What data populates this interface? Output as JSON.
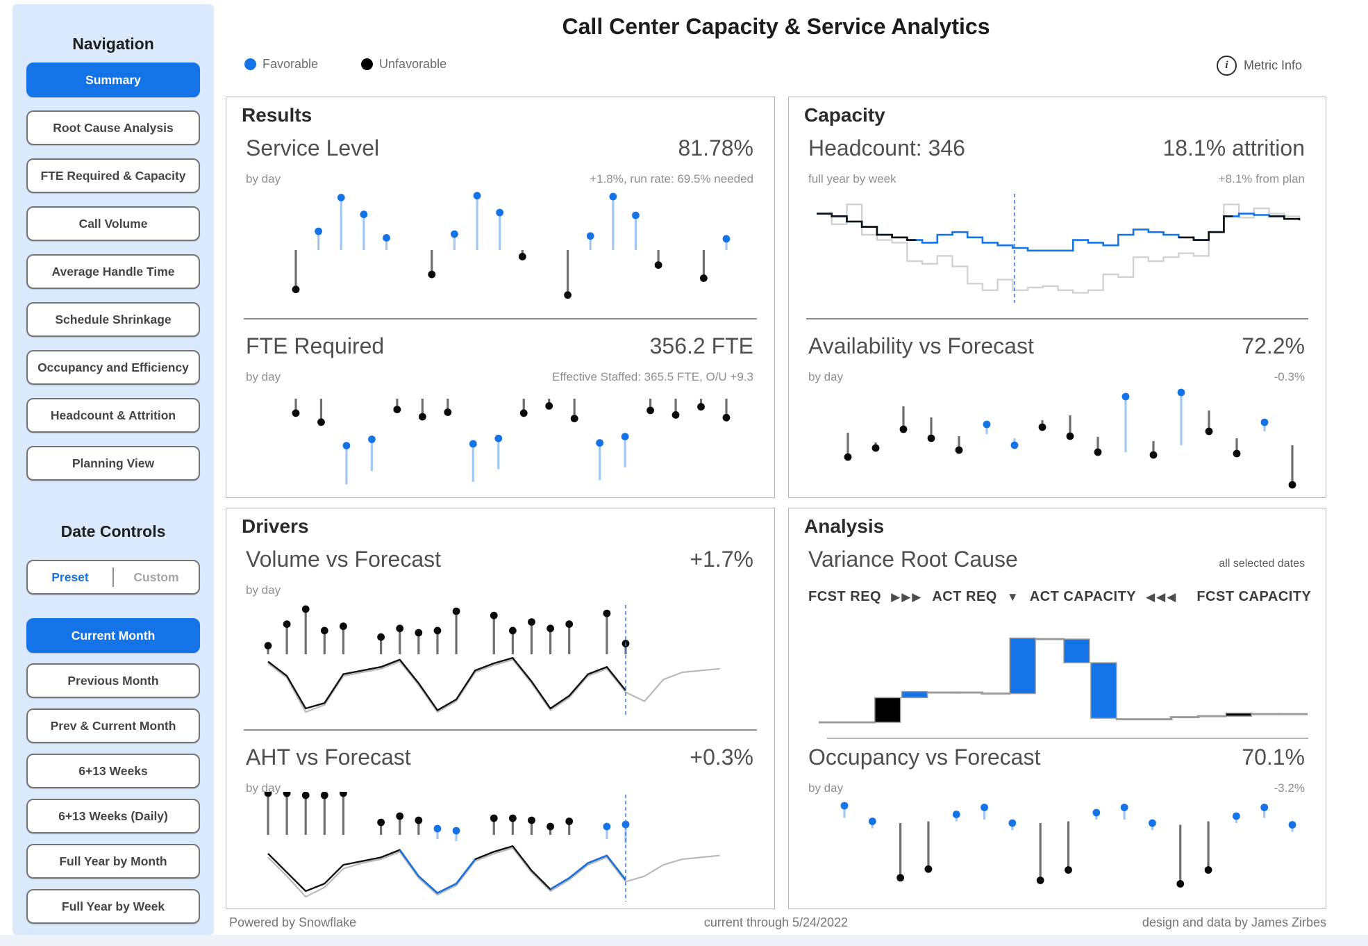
{
  "header": {
    "title": "Call Center Capacity & Service Analytics",
    "legend": [
      {
        "label": "Favorable",
        "color": "#1473e6"
      },
      {
        "label": "Unfavorable",
        "color": "#000000"
      }
    ],
    "metric_info_label": "Metric Info"
  },
  "sidebar": {
    "nav_title": "Navigation",
    "nav_items": [
      {
        "label": "Summary",
        "active": true
      },
      {
        "label": "Root Cause Analysis",
        "active": false
      },
      {
        "label": "FTE Required & Capacity",
        "active": false
      },
      {
        "label": "Call Volume",
        "active": false
      },
      {
        "label": "Average Handle Time",
        "active": false
      },
      {
        "label": "Schedule Shrinkage",
        "active": false
      },
      {
        "label": "Occupancy and Efficiency",
        "active": false
      },
      {
        "label": "Headcount & Attrition",
        "active": false
      },
      {
        "label": "Planning View",
        "active": false
      }
    ],
    "date_title": "Date Controls",
    "segmented": {
      "preset": "Preset",
      "custom": "Custom"
    },
    "date_items": [
      {
        "label": "Current Month",
        "active": true
      },
      {
        "label": "Previous Month",
        "active": false
      },
      {
        "label": "Prev & Current Month",
        "active": false
      },
      {
        "label": "6+13 Weeks",
        "active": false
      },
      {
        "label": "6+13 Weeks (Daily)",
        "active": false
      },
      {
        "label": "Full Year by Month",
        "active": false
      },
      {
        "label": "Full Year by Week",
        "active": false
      }
    ]
  },
  "panels": {
    "results": {
      "title": "Results",
      "metrics": [
        {
          "name": "Service Level",
          "sub": "by day",
          "value": "81.78%",
          "note": "+1.8%, run rate: 69.5% needed"
        },
        {
          "name": "FTE Required",
          "sub": "by day",
          "value": "356.2 FTE",
          "note": "Effective Staffed: 365.5 FTE, O/U +9.3"
        }
      ]
    },
    "capacity": {
      "title": "Capacity",
      "metrics": [
        {
          "name": "Headcount: 346",
          "sub": "full year by week",
          "value": "18.1% attrition",
          "note": "+8.1% from plan"
        },
        {
          "name": "Availability vs Forecast",
          "sub": "by day",
          "value": "72.2%",
          "note": "-0.3%"
        }
      ]
    },
    "drivers": {
      "title": "Drivers",
      "metrics": [
        {
          "name": "Volume vs Forecast",
          "sub": "by day",
          "value": "+1.7%",
          "note": ""
        },
        {
          "name": "AHT vs Forecast",
          "sub": "by day",
          "value": "+0.3%",
          "note": ""
        }
      ]
    },
    "analysis": {
      "title": "Analysis",
      "metrics": [
        {
          "name": "Variance Root Cause",
          "note_right": "all selected dates"
        },
        {
          "name": "Occupancy vs Forecast",
          "sub": "by day",
          "value": "70.1%",
          "note": "-3.2%"
        }
      ],
      "flow": [
        "FCST REQ",
        "▶▶▶",
        "ACT REQ",
        "▼",
        "ACT CAPACITY",
        "◀◀◀",
        "FCST CAPACITY"
      ]
    }
  },
  "footer": {
    "left": "Powered by Snowflake",
    "center": "current through 5/24/2022",
    "right": "design and data by James Zirbes"
  },
  "colors": {
    "blue": "#1473e6",
    "black": "#0a0a0a",
    "stem_blue": "#a3c7f3",
    "stem_gray": "#6f6f6f",
    "plan_gray": "#d2d2d2",
    "forecast_gray": "#b9b9b9",
    "conn_gray": "#9b9b9b",
    "cursor_blue": "#3f7de0"
  },
  "chart_data": {
    "service_level": {
      "type": "lollipop",
      "title": "Service Level by day, % vs goal (blue favorable above baseline, black unfavorable below)",
      "points": [
        {
          "c": "k",
          "v": -42
        },
        {
          "c": "b",
          "v": 20
        },
        {
          "c": "b",
          "v": 56
        },
        {
          "c": "b",
          "v": 38
        },
        {
          "c": "b",
          "v": 13
        },
        null,
        {
          "c": "k",
          "v": -26
        },
        {
          "c": "b",
          "v": 17
        },
        {
          "c": "b",
          "v": 58
        },
        {
          "c": "b",
          "v": 40
        },
        {
          "c": "k",
          "v": -7
        },
        null,
        {
          "c": "k",
          "v": -48
        },
        {
          "c": "b",
          "v": 15
        },
        {
          "c": "b",
          "v": 57
        },
        {
          "c": "b",
          "v": 37
        },
        {
          "c": "k",
          "v": -16
        },
        null,
        {
          "c": "k",
          "v": -30
        },
        {
          "c": "b",
          "v": 12
        }
      ]
    },
    "fte_required": {
      "type": "lollipop",
      "title": "FTE Required by day vs effective staffed",
      "points": [
        {
          "c": "k",
          "v": -16
        },
        {
          "c": "k",
          "v": -26
        },
        {
          "c": "b",
          "v": -52,
          "t": -95
        },
        {
          "c": "b",
          "v": -45,
          "t": -80
        },
        {
          "c": "k",
          "v": -12
        },
        {
          "c": "k",
          "v": -20
        },
        {
          "c": "k",
          "v": -15
        },
        {
          "c": "b",
          "v": -50,
          "t": -92
        },
        {
          "c": "b",
          "v": -44,
          "t": -78
        },
        {
          "c": "k",
          "v": -16
        },
        {
          "c": "k",
          "v": -8
        },
        {
          "c": "k",
          "v": -22
        },
        {
          "c": "b",
          "v": -49,
          "t": -90
        },
        {
          "c": "b",
          "v": -42,
          "t": -76
        },
        {
          "c": "k",
          "v": -13
        },
        {
          "c": "k",
          "v": -18
        },
        {
          "c": "k",
          "v": -9
        },
        {
          "c": "k",
          "v": -21
        }
      ]
    },
    "headcount": {
      "type": "step",
      "title": "Headcount full year by week: plan (gray), actual (black) and forecast (blue)",
      "plan": [
        86,
        78,
        93,
        70,
        66,
        64,
        50,
        48,
        54,
        46,
        33,
        28,
        36,
        28,
        30,
        31,
        28,
        26,
        28,
        40,
        38,
        53,
        50,
        53,
        56,
        54,
        72,
        93,
        83,
        90,
        86,
        84,
        82
      ],
      "actual": [
        86,
        84,
        80,
        76,
        70,
        68,
        66,
        64,
        70,
        72,
        68,
        64,
        62,
        60,
        58,
        58,
        58,
        66,
        64,
        62,
        70,
        74,
        72,
        70,
        68,
        66,
        72,
        84,
        86,
        85,
        84,
        82,
        81
      ],
      "black_ranges": [
        [
          0,
          6
        ],
        [
          24,
          27
        ],
        [
          30,
          32
        ]
      ],
      "cursor": 0.41
    },
    "availability": {
      "type": "lollipop",
      "title": "Availability vs Forecast by day",
      "points": [
        {
          "c": "k",
          "v": -35,
          "t": 0
        },
        {
          "c": "k",
          "v": -22,
          "t": -14
        },
        {
          "c": "k",
          "v": 5,
          "t": 38
        },
        {
          "c": "k",
          "v": -8,
          "t": 22
        },
        {
          "c": "k",
          "v": -25,
          "t": -5
        },
        {
          "c": "b",
          "v": 12,
          "t": -2
        },
        {
          "c": "b",
          "v": -18,
          "t": -8
        },
        {
          "c": "k",
          "v": 8,
          "t": 18
        },
        {
          "c": "k",
          "v": -5,
          "t": 25
        },
        {
          "c": "k",
          "v": -28,
          "t": -6
        },
        {
          "c": "b",
          "v": 52,
          "t": -28
        },
        {
          "c": "k",
          "v": -32,
          "t": -12
        },
        {
          "c": "b",
          "v": 58,
          "t": -18
        },
        {
          "c": "k",
          "v": 2,
          "t": 32
        },
        {
          "c": "k",
          "v": -30,
          "t": -8
        },
        {
          "c": "b",
          "v": 15,
          "t": 2
        },
        {
          "c": "k",
          "v": -75,
          "t": -18
        }
      ]
    },
    "volume": {
      "type": "lollipop+line",
      "title": "Volume vs Forecast by day: daily variance lollipops over actual (black) and forecast (gray) volume lines",
      "points": [
        {
          "c": "k",
          "v": 8
        },
        {
          "c": "k",
          "v": 28
        },
        {
          "c": "k",
          "v": 42
        },
        {
          "c": "k",
          "v": 22
        },
        {
          "c": "k",
          "v": 26
        },
        null,
        {
          "c": "k",
          "v": 16
        },
        {
          "c": "k",
          "v": 24
        },
        {
          "c": "k",
          "v": 20
        },
        {
          "c": "k",
          "v": 22
        },
        {
          "c": "k",
          "v": 40
        },
        null,
        {
          "c": "k",
          "v": 36
        },
        {
          "c": "k",
          "v": 22
        },
        {
          "c": "k",
          "v": 30
        },
        {
          "c": "k",
          "v": 24
        },
        {
          "c": "k",
          "v": 28
        },
        null,
        {
          "c": "k",
          "v": 38
        },
        {
          "c": "k",
          "v": 10
        }
      ],
      "line_actual": [
        -4,
        -12,
        -30,
        -27,
        -11,
        -9,
        -7,
        -3,
        -16,
        -31,
        -25,
        -9,
        -5,
        -2,
        -15,
        -30,
        -23,
        -11,
        -7,
        -20
      ],
      "line_forecast": [
        -5,
        -13,
        -32,
        -28,
        -12,
        -10,
        -8,
        -4,
        -17,
        -32,
        -26,
        -10,
        -6,
        -3,
        -16,
        -31,
        -24,
        -12,
        -8,
        -21,
        -26,
        -14,
        -10,
        -9,
        -8
      ],
      "cursor_index": 19
    },
    "aht": {
      "type": "lollipop+line",
      "title": "AHT vs Forecast by day: variance lollipops over actual (black/blue) and forecast (gray) lines",
      "points": [
        {
          "c": "k",
          "v": 40
        },
        {
          "c": "k",
          "v": 40
        },
        {
          "c": "k",
          "v": 38
        },
        {
          "c": "k",
          "v": 38
        },
        {
          "c": "k",
          "v": 40
        },
        null,
        {
          "c": "k",
          "v": 12
        },
        {
          "c": "k",
          "v": 18
        },
        {
          "c": "k",
          "v": 14
        },
        {
          "c": "b",
          "v": 6,
          "t": -4
        },
        {
          "c": "b",
          "v": 4,
          "t": -6
        },
        null,
        {
          "c": "k",
          "v": 16
        },
        {
          "c": "k",
          "v": 16
        },
        {
          "c": "k",
          "v": 14
        },
        {
          "c": "k",
          "v": 8
        },
        {
          "c": "k",
          "v": 13
        },
        null,
        {
          "c": "b",
          "v": 8,
          "t": -4
        },
        {
          "c": "b",
          "v": 10,
          "t": -8
        }
      ],
      "line_actual": [
        -10,
        -20,
        -30,
        -26,
        -16,
        -14,
        -12,
        -8,
        -22,
        -31,
        -26,
        -13,
        -9,
        -6,
        -19,
        -29,
        -23,
        -15,
        -11,
        -24
      ],
      "blue_ranges": [
        [
          7,
          11
        ],
        [
          15,
          19
        ]
      ],
      "line_forecast": [
        -12,
        -22,
        -33,
        -28,
        -18,
        -15,
        -13,
        -9,
        -23,
        -32,
        -27,
        -14,
        -10,
        -7,
        -20,
        -30,
        -24,
        -16,
        -12,
        -25,
        -22,
        -16,
        -13,
        -12,
        -11
      ],
      "cursor_index": 19
    },
    "waterfall": {
      "type": "waterfall",
      "title": "Variance Root Cause bridge from FCST REQ to ACT REQ to ACT CAPACITY to FCST CAPACITY",
      "steps": [
        {
          "c": "conn",
          "v0": 0,
          "v1": 0
        },
        {
          "c": "conn",
          "v0": 0,
          "v1": 0
        },
        {
          "c": "black",
          "v0": 0,
          "v1": 24
        },
        {
          "c": "blue",
          "v0": 24,
          "v1": 30
        },
        {
          "c": "conn",
          "v0": 30,
          "v1": 29
        },
        {
          "c": "conn",
          "v0": 29,
          "v1": 29
        },
        {
          "c": "conn",
          "v0": 29,
          "v1": 28
        },
        {
          "c": "blue",
          "v0": 28,
          "v1": 82
        },
        {
          "c": "conn",
          "v0": 82,
          "v1": 81
        },
        {
          "c": "blue",
          "v0": 81,
          "v1": 58
        },
        {
          "c": "blue",
          "v0": 58,
          "v1": 4
        },
        {
          "c": "conn",
          "v0": 4,
          "v1": 3
        },
        {
          "c": "conn",
          "v0": 3,
          "v1": 3
        },
        {
          "c": "conn",
          "v0": 3,
          "v1": 5
        },
        {
          "c": "conn",
          "v0": 5,
          "v1": 6
        },
        {
          "c": "black",
          "v0": 6,
          "v1": 9
        },
        {
          "c": "conn",
          "v0": 9,
          "v1": 8
        },
        {
          "c": "conn",
          "v0": 8,
          "v1": 8
        }
      ]
    },
    "occupancy": {
      "type": "lollipop",
      "title": "Occupancy vs Forecast by day",
      "points": [
        {
          "c": "b",
          "v": 28,
          "t": 14
        },
        {
          "c": "b",
          "v": 10,
          "t": 2
        },
        {
          "c": "k",
          "v": -55,
          "t": 8
        },
        {
          "c": "k",
          "v": -45,
          "t": 10
        },
        {
          "c": "b",
          "v": 18,
          "t": 10
        },
        {
          "c": "b",
          "v": 26,
          "t": 12
        },
        {
          "c": "b",
          "v": 8,
          "t": 0
        },
        {
          "c": "k",
          "v": -58,
          "t": 8
        },
        {
          "c": "k",
          "v": -46,
          "t": 10
        },
        {
          "c": "b",
          "v": 20,
          "t": 12
        },
        {
          "c": "b",
          "v": 26,
          "t": 12
        },
        {
          "c": "b",
          "v": 8,
          "t": 0
        },
        {
          "c": "k",
          "v": -62,
          "t": 6
        },
        {
          "c": "k",
          "v": -46,
          "t": 10
        },
        {
          "c": "b",
          "v": 16,
          "t": 8
        },
        {
          "c": "b",
          "v": 26,
          "t": 14
        },
        {
          "c": "b",
          "v": 6,
          "t": -2
        }
      ]
    }
  }
}
